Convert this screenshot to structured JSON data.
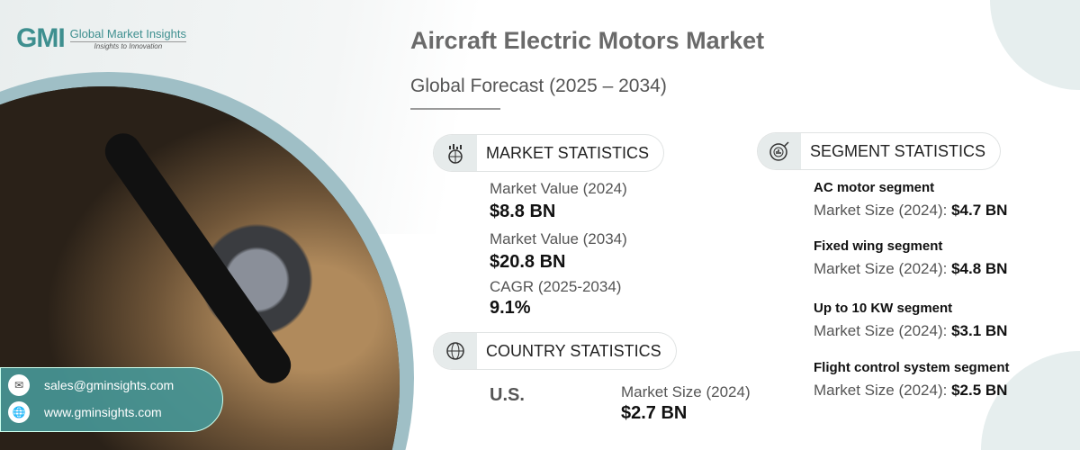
{
  "brand": {
    "mark": "GMI",
    "name": "Global Market Insights",
    "tagline": "Insights to Innovation"
  },
  "header": {
    "title": "Aircraft Electric Motors Market",
    "subtitle": "Global Forecast (2025 – 2034)"
  },
  "market": {
    "heading": "MARKET STATISTICS",
    "items": [
      {
        "label": "Market Value (2024)",
        "value": "$8.8 BN"
      },
      {
        "label": "Market Value (2034)",
        "value": "$20.8 BN"
      },
      {
        "label": "CAGR (2025-2034)",
        "value": "9.1%"
      }
    ]
  },
  "country": {
    "heading": "COUNTRY STATISTICS",
    "name": "U.S.",
    "label": "Market Size (2024)",
    "value": "$2.7 BN"
  },
  "segment": {
    "heading": "SEGMENT STATISTICS",
    "items": [
      {
        "name": "AC motor segment",
        "label": "Market Size (2024):",
        "value": "$4.7 BN"
      },
      {
        "name": "Fixed wing segment",
        "label": "Market Size (2024):",
        "value": "$4.8 BN"
      },
      {
        "name": "Up to 10 KW segment",
        "label": "Market Size (2024):",
        "value": "$3.1 BN"
      },
      {
        "name": "Flight control system segment",
        "label": "Market Size (2024):",
        "value": "$2.5 BN"
      }
    ]
  },
  "contact": {
    "email": "sales@gminsights.com",
    "website": "www.gminsights.com"
  }
}
